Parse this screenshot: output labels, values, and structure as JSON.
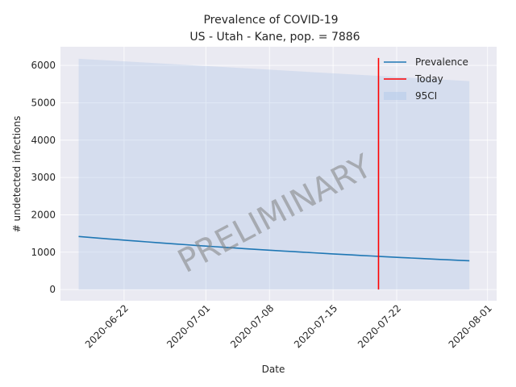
{
  "chart_data": {
    "type": "line",
    "title": "Prevalence of COVID-19",
    "subtitle": "US - Utah - Kane, pop. = 7886",
    "xlabel": "Date",
    "ylabel": "# undetected infections",
    "x_start": "2020-06-17",
    "x_end": "2020-07-30",
    "xlim": [
      "2020-06-15",
      "2020-08-02"
    ],
    "ylim": [
      -300,
      6500
    ],
    "x_ticks": [
      "2020-06-22",
      "2020-07-01",
      "2020-07-08",
      "2020-07-15",
      "2020-07-22",
      "2020-08-01"
    ],
    "y_ticks": [
      0,
      1000,
      2000,
      3000,
      4000,
      5000,
      6000
    ],
    "grid": true,
    "legend_position": "top-right",
    "series": [
      {
        "name": "Prevalence",
        "color": "#1f77b4",
        "start_value": 1420,
        "end_value": 770
      },
      {
        "name": "95CI",
        "color": "#aec7e8",
        "upper_start": 6180,
        "upper_end": 5580,
        "lower_start": 0,
        "lower_end": 0
      }
    ],
    "today": {
      "name": "Today",
      "date": "2020-07-20",
      "color": "#ff0000",
      "y_range": [
        0,
        6200
      ]
    },
    "watermark": "PRELIMINARY"
  }
}
